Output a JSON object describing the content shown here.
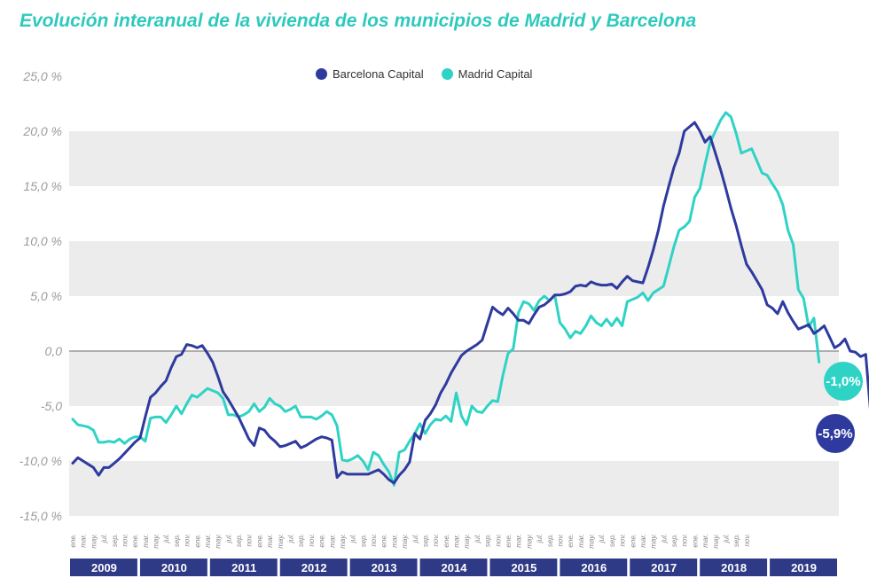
{
  "chart_data": {
    "type": "line",
    "title": "Evolución interanual de la vivienda de los municipios de Madrid y Barcelona",
    "y_tick_labels": [
      "25,0 %",
      "20,0 %",
      "15,0 %",
      "10,0 %",
      "5,0 %",
      "0,0",
      "-5,0",
      "-10,0 %",
      "-15,0 %"
    ],
    "y_tick_values": [
      25,
      20,
      15,
      10,
      5,
      0,
      -5,
      -10,
      -15
    ],
    "ylim": [
      -15,
      25
    ],
    "month_labels": [
      "ene.",
      "mar.",
      "may.",
      "jul.",
      "sep.",
      "nov."
    ],
    "years": [
      "2009",
      "2010",
      "2011",
      "2012",
      "2013",
      "2014",
      "2015",
      "2016",
      "2017",
      "2018",
      "2019"
    ],
    "legend": [
      "Barcelona Capital",
      "Madrid Capital"
    ],
    "series": [
      {
        "name": "Barcelona Capital",
        "color": "#2e3a9e",
        "end_label": "-5,9%",
        "values": [
          -10.2,
          -9.7,
          -10.0,
          -10.3,
          -10.6,
          -11.3,
          -10.6,
          -10.6,
          -10.2,
          -9.8,
          -9.3,
          -8.8,
          -8.3,
          -7.9,
          -6.0,
          -4.2,
          -3.8,
          -3.2,
          -2.7,
          -1.5,
          -0.5,
          -0.3,
          0.6,
          0.5,
          0.3,
          0.5,
          -0.2,
          -1.0,
          -2.3,
          -3.7,
          -4.4,
          -5.2,
          -6.0,
          -7.0,
          -8.0,
          -8.6,
          -7.0,
          -7.2,
          -7.8,
          -8.2,
          -8.7,
          -8.6,
          -8.4,
          -8.2,
          -8.8,
          -8.6,
          -8.3,
          -8.0,
          -7.8,
          -7.9,
          -8.1,
          -11.5,
          -11.0,
          -11.2,
          -11.2,
          -11.2,
          -11.2,
          -11.2,
          -11.0,
          -10.8,
          -11.2,
          -11.7,
          -12.0,
          -11.3,
          -10.8,
          -10.1,
          -7.5,
          -8.0,
          -6.3,
          -5.7,
          -4.9,
          -3.8,
          -3.0,
          -2.0,
          -1.2,
          -0.4,
          0.0,
          0.3,
          0.6,
          1.0,
          2.5,
          4.0,
          3.6,
          3.3,
          3.9,
          3.4,
          2.8,
          2.8,
          2.5,
          3.3,
          4.0,
          4.2,
          4.6,
          5.1,
          5.1,
          5.2,
          5.4,
          5.9,
          6.0,
          5.9,
          6.3,
          6.1,
          6.0,
          6.0,
          6.1,
          5.7,
          6.3,
          6.8,
          6.4,
          6.3,
          6.2,
          7.6,
          9.2,
          11.0,
          13.2,
          15.0,
          16.7,
          18.0,
          20.0,
          20.4,
          20.8,
          20.0,
          19.0,
          19.5,
          18.0,
          16.5,
          14.8,
          13.0,
          11.4,
          9.6,
          7.9,
          7.2,
          6.4,
          5.6,
          4.2,
          3.9,
          3.4,
          4.5,
          3.5,
          2.7,
          2.0,
          2.2,
          2.4,
          1.6,
          1.9,
          2.3,
          1.3,
          0.3,
          0.6,
          1.1,
          0.0,
          -0.1,
          -0.5,
          -0.3,
          -5.9
        ]
      },
      {
        "name": "Madrid Capital",
        "color": "#2fd3c5",
        "end_label": "-1,0%",
        "values": [
          -6.2,
          -6.7,
          -6.8,
          -6.9,
          -7.2,
          -8.3,
          -8.3,
          -8.2,
          -8.3,
          -8.0,
          -8.4,
          -8.0,
          -7.8,
          -7.8,
          -8.2,
          -6.1,
          -6.0,
          -6.0,
          -6.5,
          -5.8,
          -5.0,
          -5.7,
          -4.8,
          -4.0,
          -4.2,
          -3.8,
          -3.4,
          -3.6,
          -3.8,
          -4.3,
          -5.8,
          -5.8,
          -6.0,
          -5.8,
          -5.5,
          -4.8,
          -5.5,
          -5.1,
          -4.3,
          -4.8,
          -5.0,
          -5.5,
          -5.3,
          -5.0,
          -6.0,
          -6.0,
          -6.0,
          -6.2,
          -5.9,
          -5.5,
          -5.8,
          -6.8,
          -9.9,
          -10.0,
          -9.8,
          -9.5,
          -10.0,
          -10.8,
          -9.2,
          -9.5,
          -10.3,
          -11.0,
          -12.2,
          -9.2,
          -9.0,
          -8.2,
          -7.5,
          -6.6,
          -7.5,
          -6.7,
          -6.2,
          -6.3,
          -5.9,
          -6.4,
          -3.8,
          -5.9,
          -6.7,
          -5.0,
          -5.5,
          -5.6,
          -5.0,
          -4.5,
          -4.6,
          -2.2,
          -0.2,
          0.2,
          3.5,
          4.5,
          4.3,
          3.7,
          4.6,
          5.0,
          4.6,
          5.1,
          2.6,
          2.0,
          1.2,
          1.8,
          1.6,
          2.3,
          3.2,
          2.6,
          2.3,
          2.9,
          2.3,
          3.0,
          2.3,
          4.5,
          4.7,
          4.9,
          5.3,
          4.6,
          5.3,
          5.6,
          5.9,
          7.7,
          9.5,
          11.0,
          11.3,
          11.8,
          14.0,
          14.8,
          17.0,
          19.0,
          20.0,
          21.0,
          21.7,
          21.3,
          19.8,
          18.0,
          18.2,
          18.4,
          17.3,
          16.2,
          16.0,
          15.2,
          14.5,
          13.3,
          11.0,
          9.7,
          5.6,
          4.8,
          2.2,
          3.0,
          -1.0
        ]
      }
    ]
  }
}
